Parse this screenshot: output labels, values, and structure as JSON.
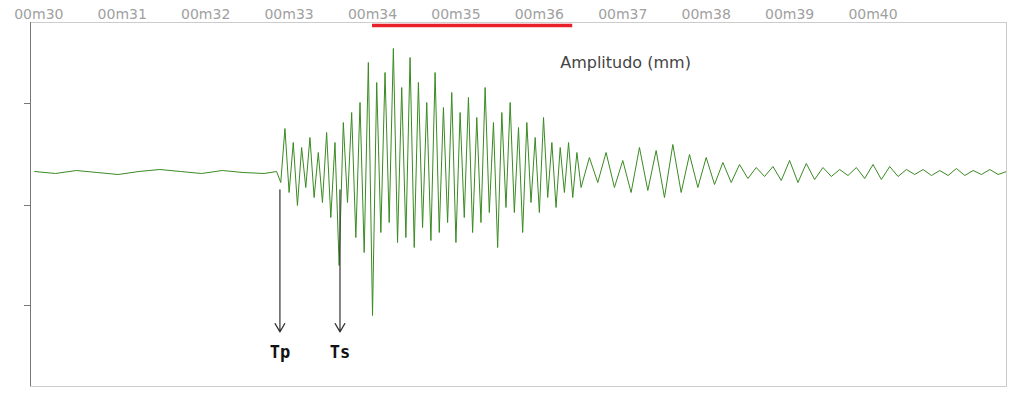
{
  "chart_data": {
    "type": "line",
    "color": "#3a8a22",
    "x": [
      29.95,
      30.2,
      30.45,
      30.7,
      30.95,
      31.2,
      31.45,
      31.7,
      31.95,
      32.2,
      32.45,
      32.7,
      32.85,
      32.9,
      32.95,
      33,
      33.05,
      33.1,
      33.15,
      33.2,
      33.25,
      33.3,
      33.35,
      33.4,
      33.45,
      33.5,
      33.55,
      33.6,
      33.65,
      33.7,
      33.75,
      33.8,
      33.85,
      33.9,
      33.95,
      34,
      34.05,
      34.1,
      34.15,
      34.2,
      34.25,
      34.3,
      34.35,
      34.4,
      34.45,
      34.5,
      34.55,
      34.6,
      34.65,
      34.7,
      34.75,
      34.8,
      34.85,
      34.9,
      34.95,
      35,
      35.05,
      35.1,
      35.15,
      35.2,
      35.25,
      35.3,
      35.35,
      35.4,
      35.45,
      35.5,
      35.55,
      35.6,
      35.65,
      35.7,
      35.75,
      35.8,
      35.85,
      35.9,
      35.95,
      36,
      36.05,
      36.1,
      36.15,
      36.2,
      36.25,
      36.3,
      36.35,
      36.4,
      36.45,
      36.5,
      36.6,
      36.7,
      36.8,
      36.9,
      37,
      37.1,
      37.2,
      37.3,
      37.4,
      37.5,
      37.6,
      37.7,
      37.8,
      37.9,
      38,
      38.1,
      38.2,
      38.3,
      38.4,
      38.5,
      38.6,
      38.7,
      38.8,
      38.9,
      39,
      39.1,
      39.2,
      39.3,
      39.4,
      39.5,
      39.6,
      39.7,
      39.8,
      39.9,
      40,
      40.1,
      40.2,
      40.3,
      40.4,
      40.5,
      40.6,
      40.7,
      40.8,
      40.9,
      41,
      41.1,
      41.2,
      41.3,
      41.4,
      41.5,
      41.6
    ],
    "values": [
      0.1,
      -0.1,
      0.2,
      0,
      -0.2,
      0.1,
      0.3,
      0.1,
      -0.1,
      0.2,
      0,
      -0.1,
      0.1,
      -1.0,
      4.4,
      -2.0,
      3.0,
      -3.3,
      2.5,
      -1.5,
      3.5,
      -2.5,
      2.0,
      -3.0,
      4.0,
      -4.5,
      3.0,
      -9.3,
      5.0,
      -3.0,
      6.0,
      -6.5,
      7.0,
      -8.0,
      11.0,
      -14.3,
      9.0,
      -6.0,
      10.0,
      -5.0,
      12.4,
      -7.0,
      8.5,
      -6.5,
      11.5,
      -7.5,
      9.0,
      -5.5,
      7.0,
      -6.8,
      10.0,
      -6.0,
      6.5,
      -5.0,
      8.0,
      -7.0,
      6.0,
      -4.5,
      7.5,
      -6.0,
      5.5,
      -5.0,
      8.5,
      -4.0,
      5.0,
      -7.5,
      6.0,
      -3.5,
      7.0,
      -4.0,
      4.5,
      -6.0,
      5.0,
      -3.0,
      3.5,
      -4.0,
      5.5,
      -2.5,
      3.0,
      -3.5,
      2.5,
      -2.0,
      3.0,
      -2.5,
      2.0,
      -1.5,
      1.5,
      -1.0,
      2.0,
      -1.5,
      1.2,
      -2.0,
      2.5,
      -1.8,
      2.2,
      -2.5,
      2.8,
      -2.0,
      1.8,
      -1.5,
      1.5,
      -1.2,
      1.0,
      -1.0,
      0.8,
      -0.6,
      0.5,
      -0.4,
      0.6,
      -0.8,
      1.2,
      -1.0,
      0.9,
      -0.7,
      0.5,
      -0.4,
      0.3,
      -0.3,
      0.5,
      -0.6,
      0.8,
      -0.7,
      0.6,
      -0.4,
      0.3,
      -0.2,
      0.3,
      -0.3,
      0.2,
      -0.3,
      0.4,
      -0.3,
      0.2,
      -0.2,
      0.3,
      -0.2,
      0.1
    ],
    "xlim": [
      29.9,
      41.6
    ],
    "xticks": [
      {
        "value": 30,
        "label": "00m30"
      },
      {
        "value": 31,
        "label": "00m31"
      },
      {
        "value": 32,
        "label": "00m32"
      },
      {
        "value": 33,
        "label": "00m33"
      },
      {
        "value": 34,
        "label": "00m34"
      },
      {
        "value": 35,
        "label": "00m35"
      },
      {
        "value": 36,
        "label": "00m36"
      },
      {
        "value": 37,
        "label": "00m37"
      },
      {
        "value": 38,
        "label": "00m38"
      },
      {
        "value": 39,
        "label": "00m39"
      },
      {
        "value": 40,
        "label": "00m40"
      }
    ],
    "ylim": [
      -21.4,
      15
    ],
    "yticks": [
      -13.3,
      -3.3,
      6.9
    ],
    "tick_labels": "x",
    "grid": false,
    "amplitude_bar": {
      "x": [
        34.0,
        36.4
      ],
      "color": "#e8202a"
    },
    "annotations": [
      {
        "text": "Amplitudo (mm)",
        "x": 36.25
      },
      {
        "text": "Tp",
        "x": 32.89
      },
      {
        "text": "Ts",
        "x": 33.61
      }
    ]
  }
}
